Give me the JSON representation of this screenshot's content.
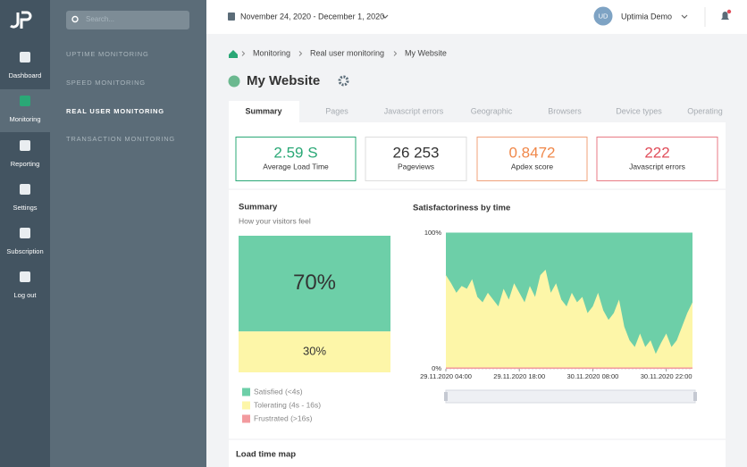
{
  "sidebar": {
    "nav": [
      "Dashboard",
      "Monitoring",
      "Reporting",
      "Settings",
      "Subscription",
      "Log out"
    ],
    "search_placeholder": "Search..."
  },
  "menu": [
    "UPTIME MONITORING",
    "SPEED MONITORING",
    "REAL USER MONITORING",
    "TRANSACTION MONITORING"
  ],
  "topbar": {
    "date_range": "November 24, 2020 - December 1, 2020",
    "avatar": "UD",
    "user": "Uptimia Demo"
  },
  "breadcrumb": [
    "Monitoring",
    "Real user monitoring",
    "My Website"
  ],
  "page_title": "My Website",
  "tabs": [
    "Summary",
    "Pages",
    "Javascript errors",
    "Geographic",
    "Browsers",
    "Device types",
    "Operating"
  ],
  "cards": [
    {
      "value": "2.59 S",
      "label": "Average Load Time",
      "color": "#2aa876",
      "border": "#2aa876"
    },
    {
      "value": "26 253",
      "label": "Pageviews",
      "color": "#333333",
      "border": "#dddddd"
    },
    {
      "value": "0.8472",
      "label": "Apdex score",
      "color": "#f0884a",
      "border": "#f0a07a"
    },
    {
      "value": "222",
      "label": "Javascript errors",
      "color": "#e04d5a",
      "border": "#e87a84"
    }
  ],
  "summary_chart": {
    "title": "Summary",
    "subtitle": "How your visitors feel",
    "segments": [
      {
        "name": "Satisfied (<4s)",
        "color": "#6dcfa8",
        "value": 70,
        "value_label": "70%"
      },
      {
        "name": "Tolerating (4s - 16s)",
        "color": "#fdf6a8",
        "value": 30,
        "value_label": "30%"
      },
      {
        "name": "Frustrated (>16s)",
        "color": "#f29a9e",
        "value": 0
      }
    ]
  },
  "time_chart": {
    "type": "area",
    "title": "Satisfactoriness by time",
    "categories": [
      "29.11.2020 04:00",
      null,
      null,
      null,
      null,
      null,
      null,
      null,
      null,
      null,
      null,
      null,
      null,
      null,
      "29.11.2020 18:00",
      null,
      null,
      null,
      null,
      null,
      null,
      null,
      null,
      null,
      null,
      null,
      null,
      null,
      "30.11.2020 08:00",
      null,
      null,
      null,
      null,
      null,
      null,
      null,
      null,
      null,
      null,
      null,
      null,
      null,
      "30.11.2020 22:00",
      null,
      null,
      null,
      null,
      null
    ],
    "ylim": [
      0,
      100
    ],
    "yticks": [
      {
        "value": 0,
        "label": "0%"
      },
      {
        "value": 100,
        "label": "100%"
      }
    ],
    "series": [
      {
        "name": "Satisfied",
        "color": "#6dcfa8",
        "values": [
          31,
          37,
          44,
          39,
          41,
          34,
          47,
          51,
          44,
          49,
          54,
          41,
          49,
          37,
          44,
          51,
          39,
          47,
          31,
          27,
          44,
          37,
          49,
          54,
          44,
          51,
          47,
          59,
          54,
          44,
          57,
          64,
          59,
          49,
          69,
          79,
          84,
          74,
          84,
          79,
          89,
          81,
          74,
          84,
          79,
          69,
          59,
          51
        ]
      },
      {
        "name": "Tolerating",
        "color": "#fdf6a8",
        "values": [
          68,
          62,
          55,
          60,
          58,
          65,
          52,
          48,
          55,
          50,
          45,
          58,
          50,
          62,
          55,
          48,
          60,
          52,
          68,
          72,
          55,
          62,
          50,
          45,
          55,
          48,
          52,
          40,
          45,
          55,
          42,
          35,
          40,
          50,
          30,
          20,
          15,
          25,
          15,
          20,
          10,
          18,
          25,
          15,
          20,
          30,
          40,
          48
        ]
      },
      {
        "name": "Frustrated",
        "color": "#f29a9e",
        "values": [
          1,
          1,
          1,
          1,
          1,
          1,
          1,
          1,
          1,
          1,
          1,
          1,
          1,
          1,
          1,
          1,
          1,
          1,
          1,
          1,
          1,
          1,
          1,
          1,
          1,
          1,
          1,
          1,
          1,
          1,
          1,
          1,
          1,
          1,
          1,
          1,
          1,
          1,
          1,
          1,
          1,
          1,
          1,
          1,
          1,
          1,
          1,
          1
        ]
      }
    ]
  },
  "section_title": "Load time map"
}
